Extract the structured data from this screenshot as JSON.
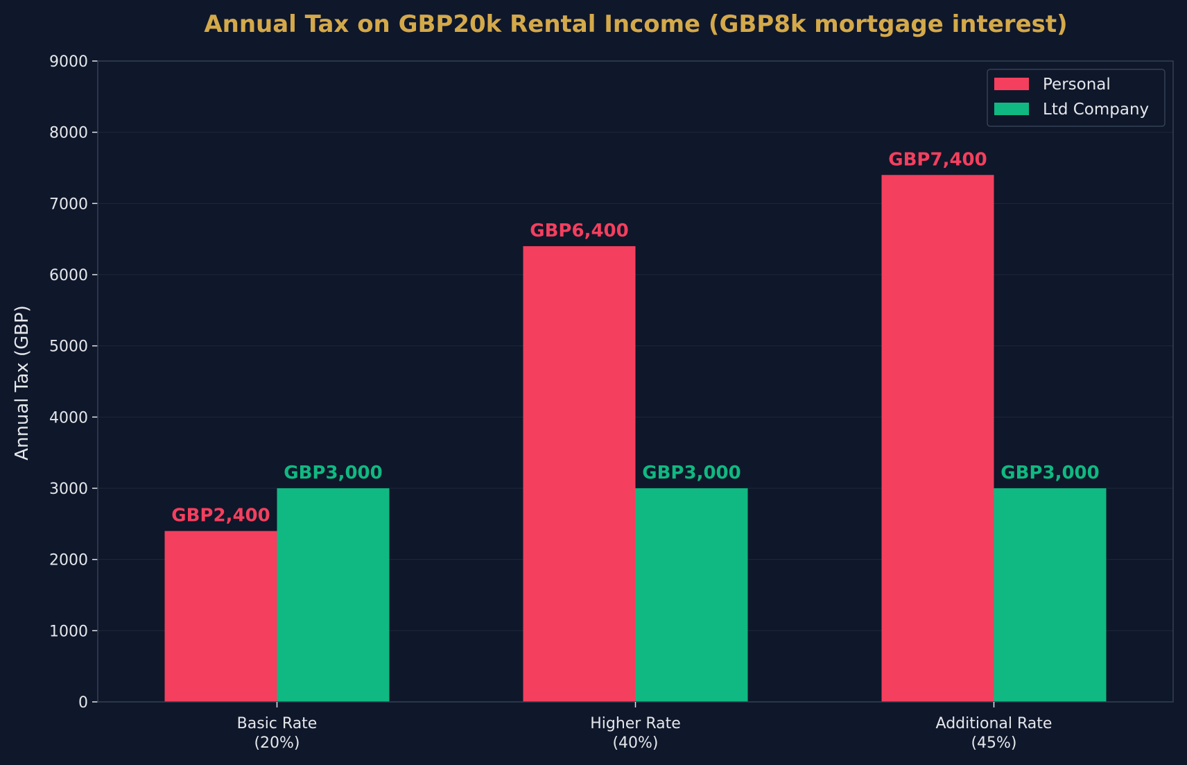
{
  "chart_data": {
    "type": "bar",
    "title": "Annual Tax on GBP20k Rental Income (GBP8k mortgage interest)",
    "xlabel": "",
    "ylabel": "Annual Tax (GBP)",
    "ylim": [
      0,
      9000
    ],
    "yticks": [
      0,
      1000,
      2000,
      3000,
      4000,
      5000,
      6000,
      7000,
      8000,
      9000
    ],
    "grid": true,
    "legend_position": "top-right",
    "categories": [
      [
        "Basic Rate",
        "(20%)"
      ],
      [
        "Higher Rate",
        "(40%)"
      ],
      [
        "Additional Rate",
        "(45%)"
      ]
    ],
    "series": [
      {
        "name": "Personal",
        "color": "#f43f5e",
        "values": [
          2400,
          6400,
          7400
        ],
        "labels": [
          "GBP2,400",
          "GBP6,400",
          "GBP7,400"
        ]
      },
      {
        "name": "Ltd Company",
        "color": "#10b981",
        "values": [
          3000,
          3000,
          3000
        ],
        "labels": [
          "GBP3,000",
          "GBP3,000",
          "GBP3,000"
        ]
      }
    ],
    "colors": {
      "background": "#0f172a",
      "title": "#d4a94a",
      "text": "#e5e7eb",
      "grid": "#1e293b",
      "axis": "#334155"
    }
  }
}
